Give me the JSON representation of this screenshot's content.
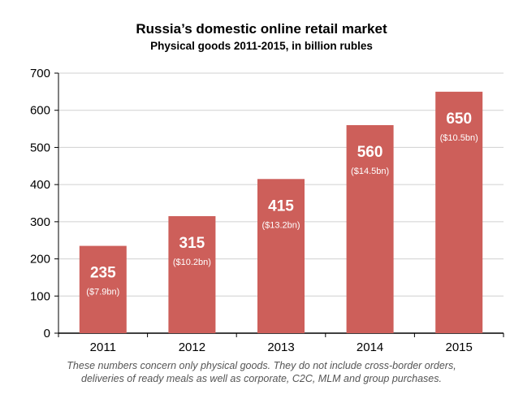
{
  "chart_data": {
    "type": "bar",
    "title": "Russia’s domestic online retail market",
    "subtitle": "Physical goods 2011-2015, in billion rubles",
    "categories": [
      "2011",
      "2012",
      "2013",
      "2014",
      "2015"
    ],
    "values": [
      235,
      315,
      415,
      560,
      650
    ],
    "value_labels": [
      "235",
      "315",
      "415",
      "560",
      "650"
    ],
    "usd_labels": [
      "($7.9bn)",
      "($10.2bn)",
      "($13.2bn)",
      "($14.5bn)",
      "($10.5bn)"
    ],
    "ylim": [
      0,
      700
    ],
    "yticks": [
      0,
      100,
      200,
      300,
      400,
      500,
      600,
      700
    ],
    "xlabel": "",
    "ylabel": "",
    "grid": true,
    "bar_color": "#cd5f5a",
    "grid_color": "#d0d0d0",
    "label_color": "#ffffff"
  },
  "footnote": {
    "line1": "These numbers concern only physical goods. They do not include cross-border orders,",
    "line2": "deliveries of ready meals as well as corporate, C2C, MLM and group purchases."
  }
}
